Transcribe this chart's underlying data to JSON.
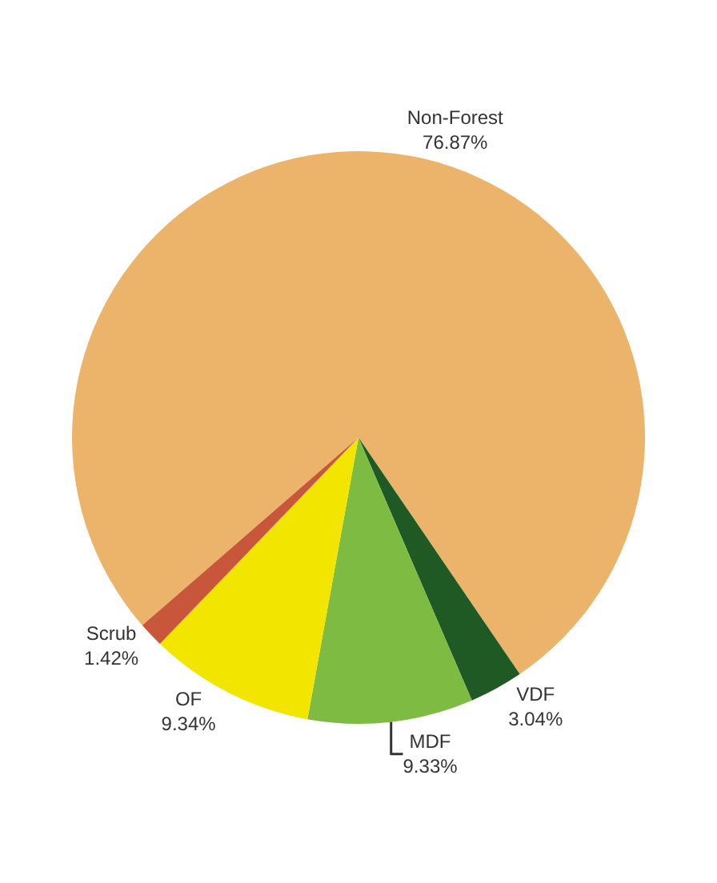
{
  "chart_data": {
    "type": "pie",
    "categories": [
      "Non-Forest",
      "VDF",
      "MDF",
      "OF",
      "Scrub"
    ],
    "values": [
      76.87,
      3.04,
      9.33,
      9.34,
      1.42
    ],
    "value_labels": [
      "76.87%",
      "3.04%",
      "9.33%",
      "9.34%",
      "1.42%"
    ],
    "colors": [
      "#ebb46a",
      "#1f5a24",
      "#7dbb42",
      "#f2e600",
      "#c8563a"
    ],
    "legend": false
  }
}
